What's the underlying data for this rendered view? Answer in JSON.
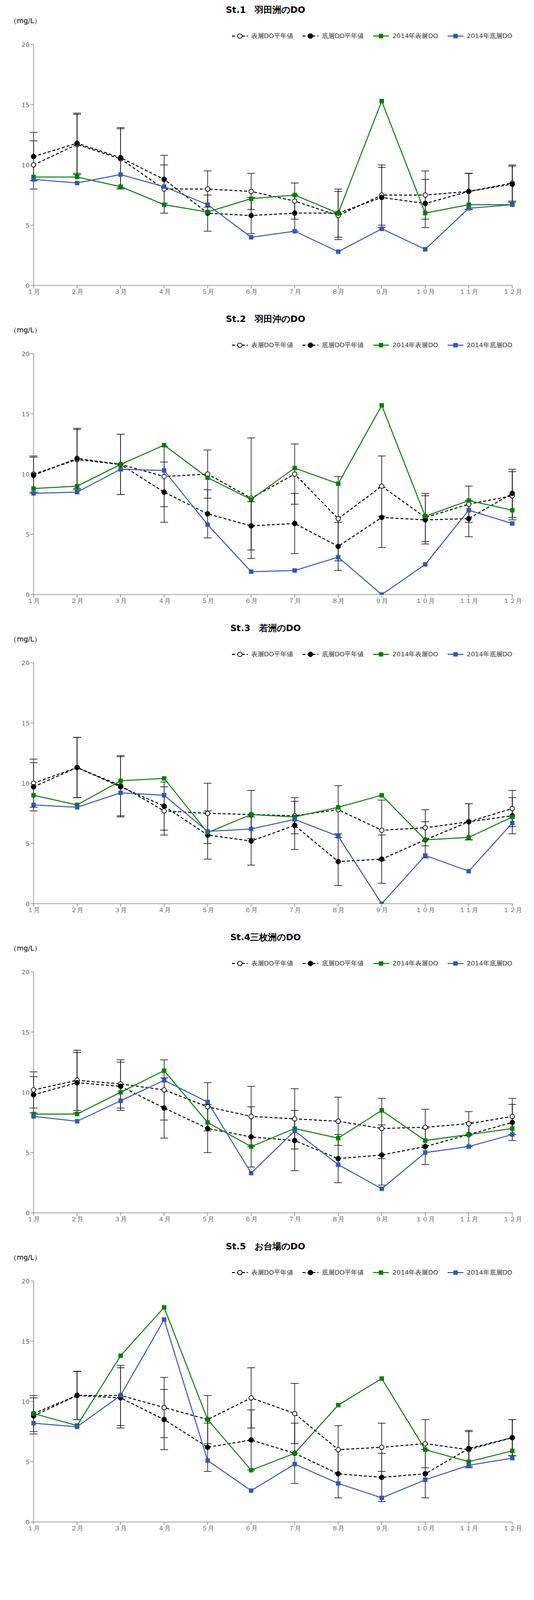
{
  "chart_data": [
    {
      "type": "line",
      "title": "St.1　羽田洲のDO",
      "ylabel": "（mg/L）",
      "categories": [
        "１月",
        "２月",
        "３月",
        "４月",
        "５月",
        "６月",
        "７月",
        "８月",
        "９月",
        "１０月",
        "１１月",
        "１２月"
      ],
      "ylim": [
        0,
        20
      ],
      "yticks": [
        0,
        5,
        10,
        15,
        20
      ],
      "grid": false,
      "legend": "upper right",
      "series": [
        {
          "name": "表層DO平年値",
          "color": "#000000",
          "marker": "open_circle",
          "line_style": "dashed",
          "values": [
            10.0,
            11.7,
            10.5,
            8.0,
            8.0,
            7.8,
            7.0,
            5.8,
            7.5,
            7.5,
            7.8,
            8.5
          ],
          "errors": [
            2.0,
            2.5,
            2.5,
            2.0,
            1.5,
            1.5,
            1.5,
            2.0,
            2.5,
            2.0,
            1.5,
            1.5
          ]
        },
        {
          "name": "底層DO平年値",
          "color": "#000000",
          "marker": "circle",
          "line_style": "dashed",
          "values": [
            10.7,
            11.8,
            10.6,
            8.8,
            6.0,
            5.8,
            6.0,
            6.0,
            7.3,
            6.8,
            7.8,
            8.4
          ],
          "errors": [
            2.0,
            2.5,
            2.5,
            2.0,
            1.5,
            1.5,
            1.5,
            2.0,
            2.5,
            2.0,
            1.5,
            1.5
          ]
        },
        {
          "name": "2014年表層DO",
          "color": "#008000",
          "marker": "square",
          "line_style": "solid",
          "values": [
            9.0,
            9.0,
            8.2,
            6.7,
            6.1,
            7.2,
            7.5,
            6.0,
            15.3,
            6.0,
            6.7,
            6.7
          ]
        },
        {
          "name": "2014年底層DO",
          "color": "#3355bb",
          "marker": "square",
          "line_style": "solid",
          "values": [
            8.8,
            8.5,
            9.2,
            8.2,
            6.7,
            4.0,
            4.5,
            2.8,
            4.7,
            3.0,
            6.4,
            6.7
          ]
        }
      ]
    },
    {
      "type": "line",
      "title": "St.2　羽田沖のDO",
      "ylabel": "（mg/L）",
      "categories": [
        "１月",
        "２月",
        "３月",
        "４月",
        "５月",
        "６月",
        "７月",
        "８月",
        "９月",
        "１０月",
        "１１月",
        "１２月"
      ],
      "ylim": [
        0,
        20
      ],
      "yticks": [
        0,
        5,
        10,
        15,
        20
      ],
      "grid": false,
      "legend": "upper right",
      "series": [
        {
          "name": "表層DO平年値",
          "color": "#000000",
          "marker": "open_circle",
          "line_style": "dashed",
          "values": [
            10.0,
            11.2,
            10.8,
            9.8,
            10.0,
            8.0,
            10.0,
            6.3,
            9.0,
            6.4,
            7.5,
            8.2
          ],
          "errors": [
            1.5,
            2.5,
            2.5,
            2.5,
            2.0,
            5.0,
            2.5,
            3.5,
            2.5,
            2.0,
            1.5,
            2.0
          ]
        },
        {
          "name": "底層DO平年値",
          "color": "#000000",
          "marker": "circle",
          "line_style": "dashed",
          "values": [
            9.9,
            11.3,
            10.8,
            8.5,
            6.7,
            5.7,
            5.9,
            4.0,
            6.4,
            6.2,
            6.3,
            8.4
          ],
          "errors": [
            1.5,
            2.5,
            2.5,
            2.5,
            2.0,
            2.0,
            2.5,
            2.0,
            2.5,
            2.0,
            1.5,
            2.0
          ]
        },
        {
          "name": "2014年表層DO",
          "color": "#008000",
          "marker": "square",
          "line_style": "solid",
          "values": [
            8.8,
            9.0,
            10.8,
            12.4,
            9.7,
            7.9,
            10.5,
            9.2,
            15.7,
            6.5,
            7.8,
            7.0
          ]
        },
        {
          "name": "2014年底層DO",
          "color": "#3355bb",
          "marker": "square",
          "line_style": "solid",
          "values": [
            8.4,
            8.5,
            10.4,
            10.3,
            5.8,
            1.9,
            2.0,
            3.1,
            0.0,
            2.5,
            7.0,
            5.9
          ]
        }
      ]
    },
    {
      "type": "line",
      "title": "St.3　若洲のDO",
      "ylabel": "（mg/L）",
      "categories": [
        "１月",
        "２月",
        "３月",
        "４月",
        "５月",
        "６月",
        "７月",
        "８月",
        "９月",
        "１０月",
        "１１月",
        "１２月"
      ],
      "ylim": [
        0,
        20
      ],
      "yticks": [
        0,
        5,
        10,
        15,
        20
      ],
      "grid": false,
      "legend": "upper right",
      "series": [
        {
          "name": "表層DO平年値",
          "color": "#000000",
          "marker": "open_circle",
          "line_style": "dashed",
          "values": [
            10.0,
            11.3,
            9.8,
            7.7,
            7.5,
            7.4,
            7.3,
            7.8,
            6.1,
            6.3,
            6.8,
            7.9
          ],
          "errors": [
            2.0,
            2.5,
            2.5,
            2.0,
            2.5,
            2.0,
            1.5,
            2.0,
            2.5,
            1.5,
            1.5,
            1.5
          ]
        },
        {
          "name": "底層DO平年値",
          "color": "#000000",
          "marker": "circle",
          "line_style": "dashed",
          "values": [
            9.7,
            11.3,
            9.7,
            8.1,
            5.7,
            5.2,
            6.5,
            3.5,
            3.7,
            5.3,
            6.8,
            7.3
          ],
          "errors": [
            2.0,
            2.5,
            2.5,
            2.0,
            2.0,
            2.0,
            2.0,
            2.0,
            2.0,
            1.5,
            1.5,
            1.5
          ]
        },
        {
          "name": "2014年表層DO",
          "color": "#008000",
          "marker": "square",
          "line_style": "solid",
          "values": [
            9.0,
            8.2,
            10.2,
            10.4,
            5.9,
            7.4,
            7.2,
            8.0,
            9.0,
            5.3,
            5.5,
            7.2
          ]
        },
        {
          "name": "2014年底層DO",
          "color": "#3355bb",
          "marker": "square",
          "line_style": "solid",
          "values": [
            8.2,
            8.0,
            9.2,
            9.0,
            6.0,
            6.2,
            7.0,
            5.6,
            0.0,
            4.0,
            2.7,
            6.7
          ]
        }
      ]
    },
    {
      "type": "line",
      "title": "St.4三枚洲のDO",
      "ylabel": "（mg/L）",
      "categories": [
        "１月",
        "２月",
        "３月",
        "４月",
        "５月",
        "６月",
        "７月",
        "８月",
        "９月",
        "１０月",
        "１１月",
        "１２月"
      ],
      "ylim": [
        0,
        20
      ],
      "yticks": [
        0,
        5,
        10,
        15,
        20
      ],
      "grid": false,
      "legend": "upper right",
      "series": [
        {
          "name": "表層DO平年値",
          "color": "#000000",
          "marker": "open_circle",
          "line_style": "dashed",
          "values": [
            10.2,
            11.0,
            10.7,
            10.2,
            8.8,
            8.0,
            7.8,
            7.6,
            7.0,
            7.1,
            7.4,
            8.0
          ],
          "errors": [
            1.5,
            2.5,
            2.0,
            2.5,
            2.0,
            2.5,
            2.5,
            2.0,
            2.5,
            1.5,
            1.0,
            1.5
          ]
        },
        {
          "name": "底層DO平年値",
          "color": "#000000",
          "marker": "circle",
          "line_style": "dashed",
          "values": [
            9.8,
            10.8,
            10.5,
            8.7,
            7.0,
            6.3,
            6.0,
            4.5,
            4.8,
            5.5,
            6.5,
            7.5
          ],
          "errors": [
            1.5,
            2.5,
            2.0,
            2.5,
            2.0,
            2.5,
            2.5,
            2.0,
            2.5,
            1.5,
            1.0,
            1.5
          ]
        },
        {
          "name": "2014年表層DO",
          "color": "#008000",
          "marker": "square",
          "line_style": "solid",
          "values": [
            8.2,
            8.2,
            10.0,
            11.8,
            7.5,
            5.5,
            7.0,
            6.2,
            8.5,
            6.0,
            6.5,
            7.0
          ]
        },
        {
          "name": "2014年底層DO",
          "color": "#3355bb",
          "marker": "square",
          "line_style": "solid",
          "values": [
            8.0,
            7.6,
            9.3,
            11.0,
            9.2,
            3.3,
            6.8,
            4.0,
            2.0,
            5.0,
            5.5,
            6.5
          ]
        }
      ]
    },
    {
      "type": "line",
      "title": "St.5　お台場のDO",
      "ylabel": "（mg/L）",
      "categories": [
        "１月",
        "２月",
        "３月",
        "４月",
        "５月",
        "６月",
        "７月",
        "８月",
        "９月",
        "１０月",
        "１１月",
        "１２月"
      ],
      "ylim": [
        0,
        20
      ],
      "yticks": [
        0,
        5,
        10,
        15,
        20
      ],
      "grid": false,
      "legend": "upper right",
      "series": [
        {
          "name": "表層DO平年値",
          "color": "#000000",
          "marker": "open_circle",
          "line_style": "dashed",
          "values": [
            9.0,
            10.5,
            10.5,
            9.5,
            8.5,
            10.3,
            9.0,
            6.0,
            6.2,
            6.5,
            6.0,
            7.0
          ],
          "errors": [
            1.5,
            2.0,
            2.5,
            2.5,
            2.0,
            2.5,
            2.5,
            2.0,
            2.0,
            2.0,
            1.5,
            1.5
          ]
        },
        {
          "name": "底層DO平年値",
          "color": "#000000",
          "marker": "circle",
          "line_style": "dashed",
          "values": [
            8.8,
            10.5,
            10.3,
            8.5,
            6.2,
            6.8,
            5.7,
            4.0,
            3.7,
            4.0,
            6.1,
            7.0
          ],
          "errors": [
            1.5,
            2.0,
            2.5,
            2.5,
            2.0,
            2.5,
            2.5,
            2.0,
            2.0,
            2.0,
            1.5,
            1.5
          ]
        },
        {
          "name": "2014年表層DO",
          "color": "#008000",
          "marker": "square",
          "line_style": "solid",
          "values": [
            9.0,
            8.0,
            13.8,
            17.8,
            8.5,
            4.3,
            5.7,
            9.7,
            11.9,
            6.0,
            5.0,
            5.9
          ]
        },
        {
          "name": "2014年底層DO",
          "color": "#3355bb",
          "marker": "square",
          "line_style": "solid",
          "values": [
            8.2,
            7.9,
            10.5,
            16.8,
            5.1,
            2.6,
            4.8,
            3.2,
            2.0,
            3.5,
            4.7,
            5.3
          ]
        }
      ]
    }
  ]
}
